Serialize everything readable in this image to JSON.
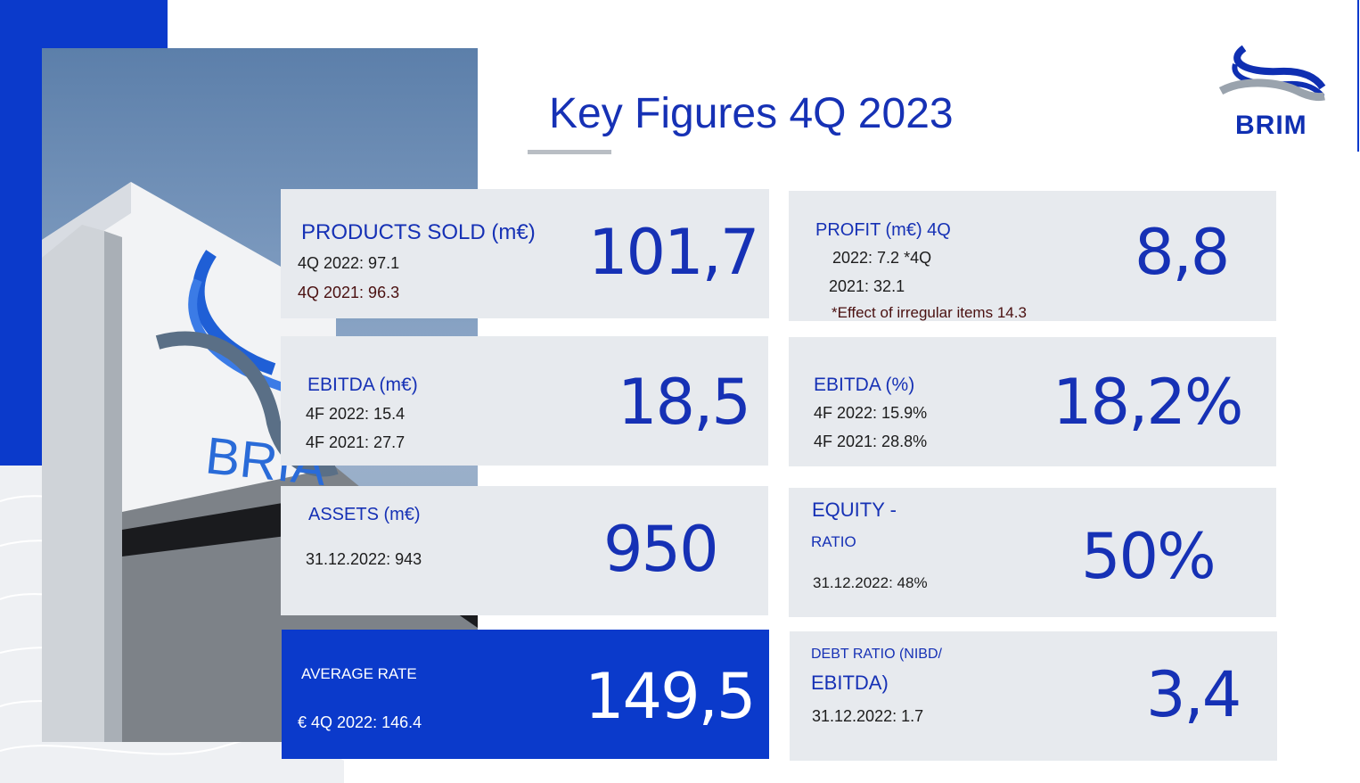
{
  "page": {
    "title": "Key Figures 4Q 2023",
    "logo_text": "BRIM",
    "photo_sign_text": "BRIA"
  },
  "cards": {
    "products_sold": {
      "label": "PRODUCTS SOLD (m€)",
      "sub1": "4Q 2022: 97.1",
      "sub2": "4Q 2021: 96.3",
      "value": "101,7"
    },
    "profit": {
      "label": "PROFIT (m€) 4Q",
      "sub1": "2022: 7.2 *4Q",
      "sub2": "2021: 32.1",
      "note": "*Effect of irregular items 14.3",
      "value": "8,8"
    },
    "ebitda": {
      "label": "EBITDA (m€)",
      "sub1": "4F 2022: 15.4",
      "sub2": "4F 2021: 27.7",
      "value": "18,5"
    },
    "ebitda_pct": {
      "label": "EBITDA (%)",
      "sub1": "4F 2022: 15.9%",
      "sub2": "4F 2021: 28.8%",
      "value": "18,2%"
    },
    "assets": {
      "label": "ASSETS (m€)",
      "sub1": "31.12.2022: 943",
      "value": "950"
    },
    "equity": {
      "label1": "EQUITY -",
      "label2": "RATIO",
      "sub1": "31.12.2022: 48%",
      "value": "50%"
    },
    "average_rate": {
      "label": "AVERAGE RATE",
      "sub1": "€ 4Q 2022: 146.4",
      "value": "149,5"
    },
    "debt_ratio": {
      "label1": "DEBT RATIO (NIBD/",
      "label2": "EBITDA)",
      "sub1": "31.12.2022: 1.7",
      "value": "3,4"
    }
  },
  "colors": {
    "brand_blue": "#0b3acb",
    "text_blue": "#1631b5",
    "card_bg": "#e7eaee"
  }
}
